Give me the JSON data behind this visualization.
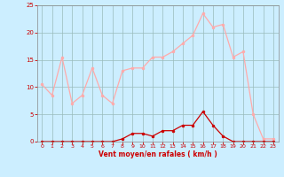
{
  "hours": [
    0,
    1,
    2,
    3,
    4,
    5,
    6,
    7,
    8,
    9,
    10,
    11,
    12,
    13,
    14,
    15,
    16,
    17,
    18,
    19,
    20,
    21,
    22,
    23
  ],
  "rafales": [
    10.5,
    8.5,
    15.5,
    7.0,
    8.5,
    13.5,
    8.5,
    7.0,
    13.0,
    13.5,
    13.5,
    15.5,
    15.5,
    16.5,
    18.0,
    19.5,
    23.5,
    21.0,
    21.5,
    15.5,
    16.5,
    5.0,
    0.5,
    0.5
  ],
  "moyen": [
    0.0,
    0.0,
    0.0,
    0.0,
    0.0,
    0.0,
    0.0,
    0.0,
    0.5,
    1.5,
    1.5,
    1.0,
    2.0,
    2.0,
    3.0,
    3.0,
    5.5,
    3.0,
    1.0,
    0.0,
    0.0,
    0.0,
    0.0,
    0.0
  ],
  "bg_color": "#cceeff",
  "line_color_rafales": "#ffaaaa",
  "line_color_moyen": "#cc0000",
  "xlabel": "Vent moyen/en rafales ( km/h )",
  "ylim": [
    0,
    25
  ],
  "yticks": [
    0,
    5,
    10,
    15,
    20,
    25
  ],
  "xlim": [
    -0.5,
    23.5
  ],
  "grid_color": "#99bbbb",
  "tick_color": "#cc0000",
  "label_color": "#cc0000",
  "spine_color": "#888888"
}
